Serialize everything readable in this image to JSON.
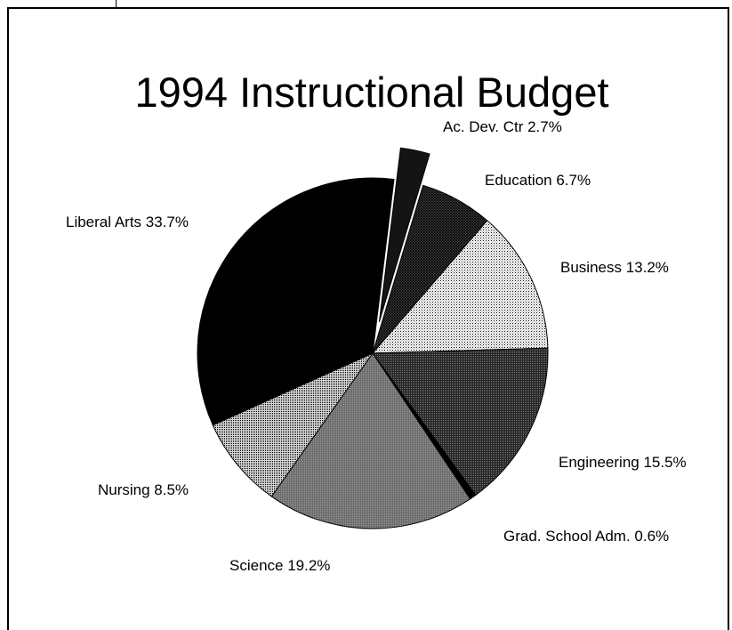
{
  "chart_data": {
    "type": "pie",
    "title": "1994 Instructional Budget",
    "unit": "%",
    "slices": [
      {
        "label": "Ac. Dev. Ctr",
        "value": 2.7,
        "exploded": true,
        "pattern": "solid-dark"
      },
      {
        "label": "Education",
        "value": 6.7,
        "exploded": false,
        "pattern": "crosshatch-dark"
      },
      {
        "label": "Business",
        "value": 13.2,
        "exploded": false,
        "pattern": "dots-light"
      },
      {
        "label": "Engineering",
        "value": 15.5,
        "exploded": false,
        "pattern": "dots-dark"
      },
      {
        "label": "Grad. School Adm.",
        "value": 0.6,
        "exploded": false,
        "pattern": "solid-black"
      },
      {
        "label": "Science",
        "value": 19.2,
        "exploded": false,
        "pattern": "dots-medium"
      },
      {
        "label": "Nursing",
        "value": 8.5,
        "exploded": false,
        "pattern": "dots-medium-light"
      },
      {
        "label": "Liberal Arts",
        "value": 33.7,
        "exploded": false,
        "pattern": "solid-black"
      }
    ],
    "labels": [
      "Ac. Dev. Ctr 2.7%",
      "Education 6.7%",
      "Business 13.2%",
      "Engineering 15.5%",
      "Grad. School Adm. 0.6%",
      "Science 19.2%",
      "Nursing 8.5%",
      "Liberal Arts 33.7%"
    ],
    "legend": "none",
    "colors": {
      "background": "#ffffff",
      "ink": "#000000"
    }
  }
}
